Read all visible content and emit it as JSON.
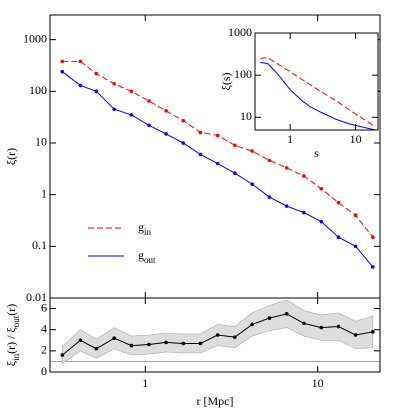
{
  "chart_data": [
    {
      "type": "line",
      "ylabel": "ξ(r)",
      "xlog": true,
      "ylog": true,
      "xlim": [
        0.28,
        23
      ],
      "ylim": [
        0.01,
        3000
      ],
      "xticks": [
        1,
        10
      ],
      "yticks": [
        0.01,
        0.1,
        1,
        10,
        100,
        1000
      ],
      "x": [
        0.33,
        0.42,
        0.52,
        0.66,
        0.83,
        1.05,
        1.32,
        1.66,
        2.09,
        2.63,
        3.31,
        4.17,
        5.25,
        6.61,
        8.32,
        10.5,
        13.2,
        16.6,
        20.9
      ],
      "series": [
        {
          "name": [
            "g",
            "in"
          ],
          "color": "#ff0000",
          "dashed": true,
          "markers": true,
          "values": [
            380,
            380,
            220,
            140,
            100,
            65,
            42,
            27,
            16,
            14,
            9,
            7,
            4.6,
            3.3,
            2.3,
            1.3,
            0.7,
            0.4,
            0.15
          ]
        },
        {
          "name": [
            "g",
            "out"
          ],
          "color": "#0000ff",
          "dashed": false,
          "markers": true,
          "values": [
            240,
            130,
            100,
            45,
            35,
            22,
            15,
            10,
            6,
            4,
            2.6,
            1.6,
            0.9,
            0.6,
            0.45,
            0.3,
            0.15,
            0.1,
            0.04
          ]
        }
      ]
    },
    {
      "type": "line",
      "xlabel": "s",
      "ylabel": "ξ(s)",
      "xlog": true,
      "ylog": true,
      "xlim": [
        0.29,
        22
      ],
      "ylim": [
        5,
        1000
      ],
      "xticks": [
        1,
        10
      ],
      "yticks": [
        10,
        100,
        1000
      ],
      "x": [
        0.35,
        0.45,
        0.6,
        0.8,
        1,
        1.5,
        2,
        3,
        5,
        8,
        12,
        20
      ],
      "series": [
        {
          "color": "#ff0000",
          "dashed": true,
          "markers": false,
          "values": [
            250,
            260,
            200,
            150,
            120,
            80,
            60,
            40,
            25,
            15,
            10,
            6
          ]
        },
        {
          "color": "#0000ff",
          "dashed": false,
          "markers": false,
          "values": [
            200,
            190,
            120,
            70,
            45,
            25,
            18,
            13,
            9,
            7,
            6,
            5
          ]
        }
      ]
    },
    {
      "type": "line",
      "xlabel": "r [Mpc]",
      "ylabel": [
        "ξ",
        "in",
        "(r) / ξ",
        "out",
        "(r)"
      ],
      "xlog": true,
      "ylog": false,
      "xlim": [
        0.28,
        23
      ],
      "ylim": [
        0,
        7
      ],
      "xticks": [
        1,
        10
      ],
      "yticks": [
        0,
        2,
        4,
        6
      ],
      "hline": 1,
      "x": [
        0.33,
        0.42,
        0.52,
        0.66,
        0.83,
        1.05,
        1.32,
        1.66,
        2.09,
        2.63,
        3.31,
        4.17,
        5.25,
        6.61,
        8.32,
        10.5,
        13.2,
        16.6,
        20.9
      ],
      "series": [
        {
          "color": "#000000",
          "dashed": false,
          "markers": true,
          "values": [
            1.6,
            3.0,
            2.2,
            3.2,
            2.5,
            2.6,
            2.8,
            2.7,
            2.7,
            3.5,
            3.3,
            4.5,
            5.1,
            5.5,
            4.6,
            4.2,
            4.3,
            3.5,
            3.8
          ],
          "errors": [
            0.8,
            1.0,
            0.9,
            1.0,
            0.9,
            0.9,
            0.9,
            0.9,
            0.9,
            1.0,
            1.0,
            1.1,
            1.2,
            1.3,
            1.2,
            1.2,
            1.3,
            1.3,
            1.5
          ]
        }
      ]
    }
  ]
}
